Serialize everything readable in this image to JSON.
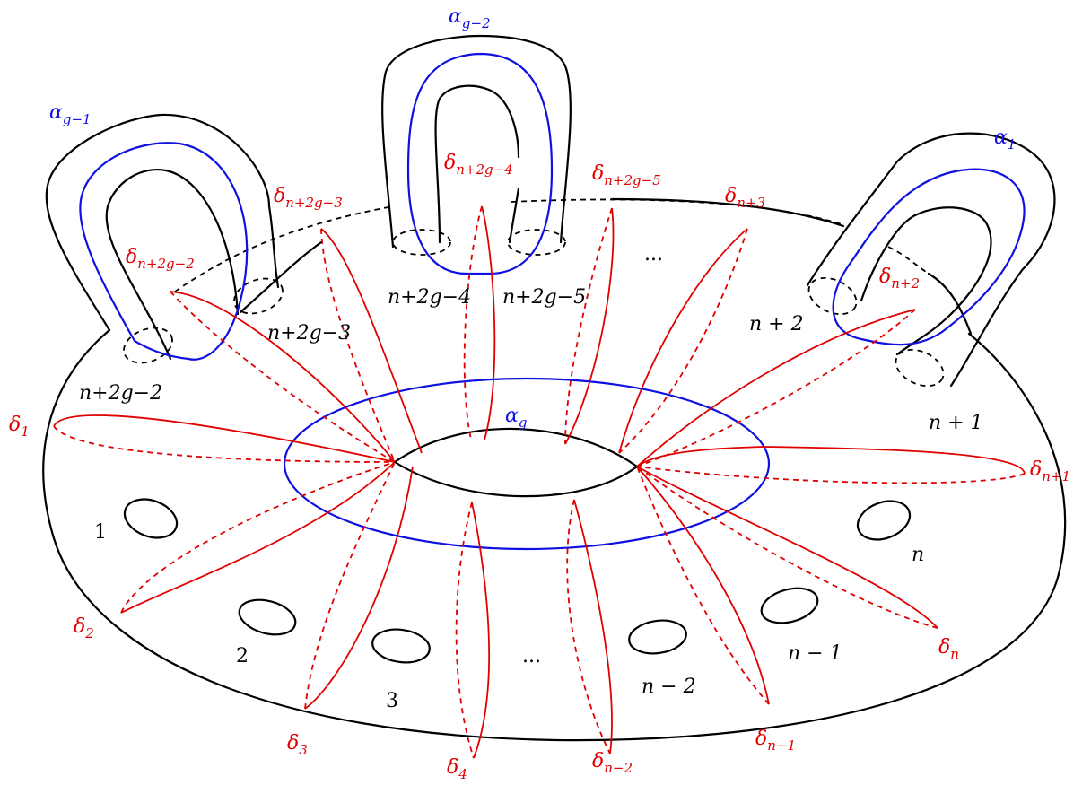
{
  "colors": {
    "surface": "#000000",
    "alpha_curves": "#1010e0",
    "delta_curves": "#e00000"
  },
  "alpha_labels": [
    {
      "id": "alpha_g_minus_2",
      "base": "α",
      "sub": "g−2"
    },
    {
      "id": "alpha_g_minus_1",
      "base": "α",
      "sub": "g−1"
    },
    {
      "id": "alpha_1",
      "base": "α",
      "sub": "1"
    },
    {
      "id": "alpha_g",
      "base": "α",
      "sub": "g"
    }
  ],
  "delta_labels": [
    {
      "id": "d_n2g4",
      "base": "δ",
      "sub": "n+2g−4"
    },
    {
      "id": "d_n2g3",
      "base": "δ",
      "sub": "n+2g−3"
    },
    {
      "id": "d_n2g5",
      "base": "δ",
      "sub": "n+2g−5"
    },
    {
      "id": "d_n3",
      "base": "δ",
      "sub": "n+3"
    },
    {
      "id": "d_n2g2",
      "base": "δ",
      "sub": "n+2g−2"
    },
    {
      "id": "d_n2",
      "base": "δ",
      "sub": "n+2"
    },
    {
      "id": "d_1",
      "base": "δ",
      "sub": "1"
    },
    {
      "id": "d_n1",
      "base": "δ",
      "sub": "n+1"
    },
    {
      "id": "d_2",
      "base": "δ",
      "sub": "2"
    },
    {
      "id": "d_n",
      "base": "δ",
      "sub": "n"
    },
    {
      "id": "d_3",
      "base": "δ",
      "sub": "3"
    },
    {
      "id": "d_nm1",
      "base": "δ",
      "sub": "n−1"
    },
    {
      "id": "d_4",
      "base": "δ",
      "sub": "4"
    },
    {
      "id": "d_nm2",
      "base": "δ",
      "sub": "n−2"
    }
  ],
  "boundary_labels": [
    {
      "id": "b_n2g4",
      "text": "n+2g−4"
    },
    {
      "id": "b_n2g5",
      "text": "n+2g−5"
    },
    {
      "id": "b_n2g3",
      "text": "n+2g−3"
    },
    {
      "id": "b_n2",
      "text": "n + 2"
    },
    {
      "id": "b_n2g2",
      "text": "n+2g−2"
    },
    {
      "id": "b_n1",
      "text": "n + 1"
    },
    {
      "id": "b_1",
      "text": "1"
    },
    {
      "id": "b_n",
      "text": "n"
    },
    {
      "id": "b_2",
      "text": "2"
    },
    {
      "id": "b_nm1",
      "text": "n − 1"
    },
    {
      "id": "b_3",
      "text": "3"
    },
    {
      "id": "b_nm2",
      "text": "n − 2"
    }
  ],
  "ellipsis_labels": [
    {
      "id": "dots_top",
      "text": "..."
    },
    {
      "id": "dots_bottom",
      "text": "..."
    }
  ]
}
